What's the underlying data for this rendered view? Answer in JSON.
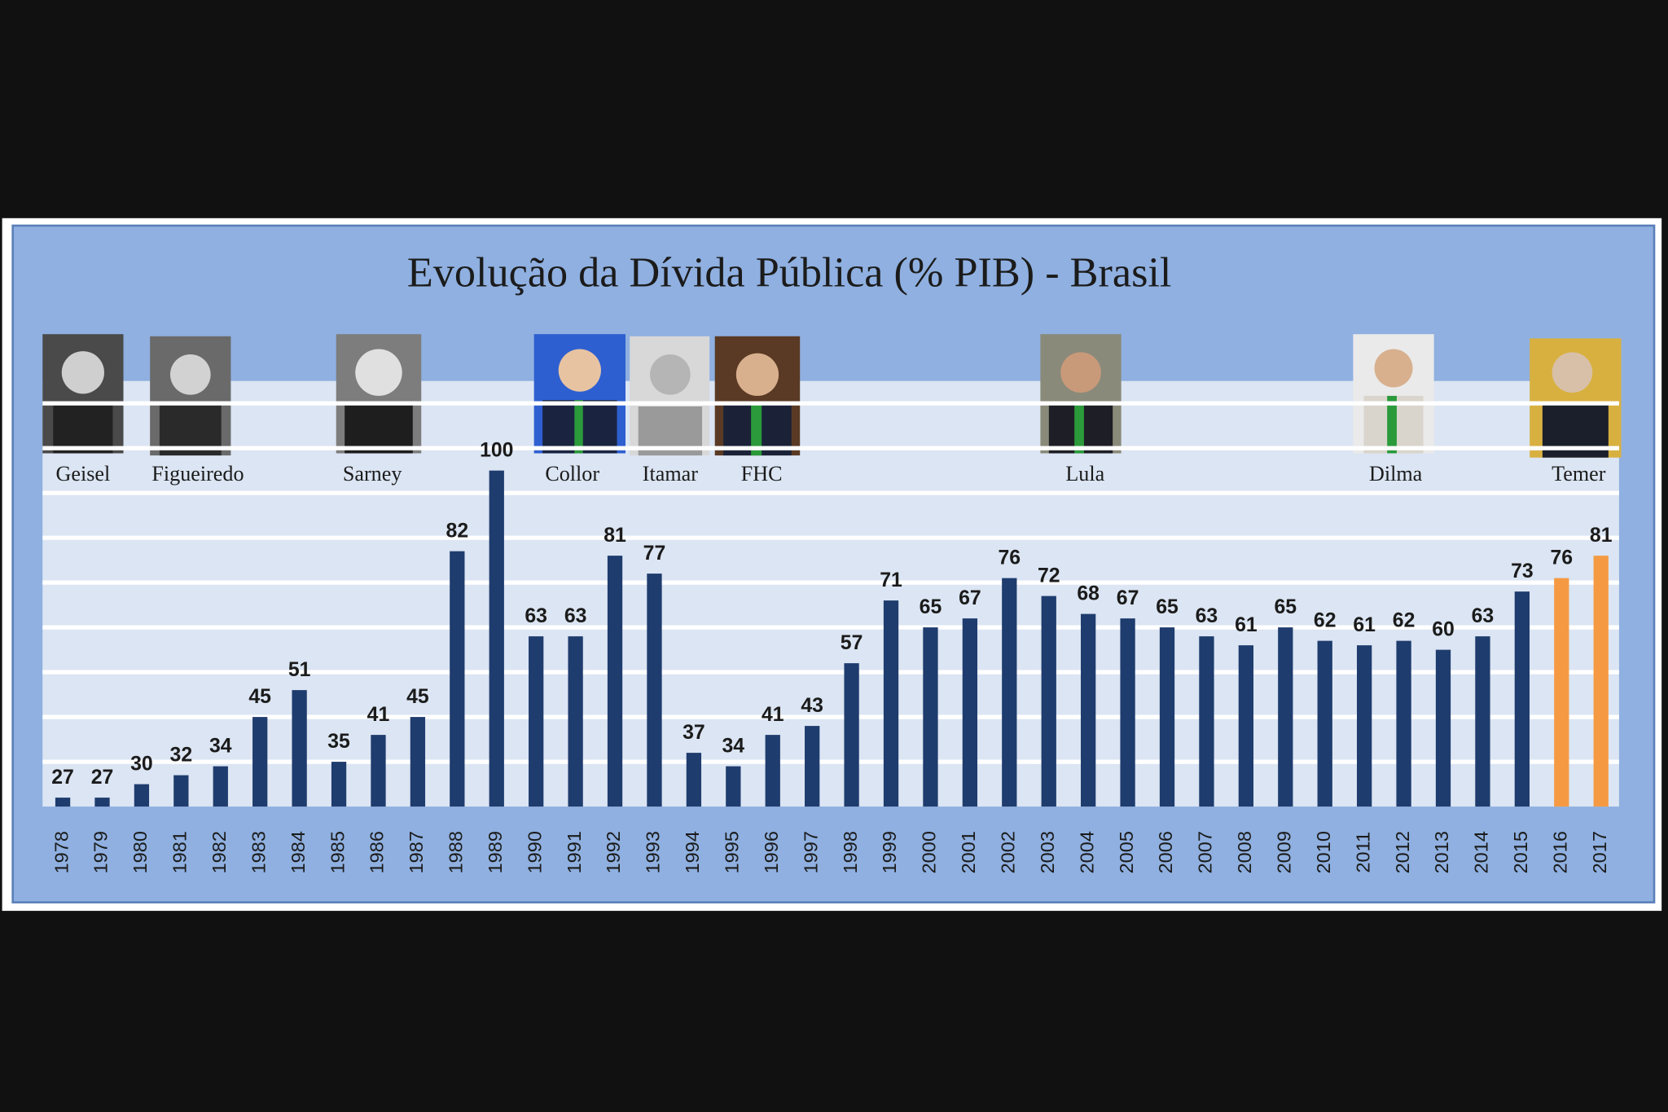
{
  "chart_data": {
    "type": "bar",
    "title": "Evolução da Dívida Pública (% PIB) - Brasil",
    "categories": [
      "1978",
      "1979",
      "1980",
      "1981",
      "1982",
      "1983",
      "1984",
      "1985",
      "1986",
      "1987",
      "1988",
      "1989",
      "1990",
      "1991",
      "1992",
      "1993",
      "1994",
      "1995",
      "1996",
      "1997",
      "1998",
      "1999",
      "2000",
      "2001",
      "2002",
      "2003",
      "2004",
      "2005",
      "2006",
      "2007",
      "2008",
      "2009",
      "2010",
      "2011",
      "2012",
      "2013",
      "2014",
      "2015",
      "2016",
      "2017"
    ],
    "values": [
      27,
      27,
      30,
      32,
      34,
      45,
      51,
      35,
      41,
      45,
      82,
      100,
      63,
      63,
      81,
      77,
      37,
      34,
      41,
      43,
      57,
      71,
      65,
      67,
      76,
      72,
      68,
      67,
      65,
      63,
      61,
      65,
      62,
      61,
      62,
      60,
      63,
      73,
      76,
      81
    ],
    "colors": [
      "#1f3c6e",
      "#1f3c6e",
      "#1f3c6e",
      "#1f3c6e",
      "#1f3c6e",
      "#1f3c6e",
      "#1f3c6e",
      "#1f3c6e",
      "#1f3c6e",
      "#1f3c6e",
      "#1f3c6e",
      "#1f3c6e",
      "#1f3c6e",
      "#1f3c6e",
      "#1f3c6e",
      "#1f3c6e",
      "#1f3c6e",
      "#1f3c6e",
      "#1f3c6e",
      "#1f3c6e",
      "#1f3c6e",
      "#1f3c6e",
      "#1f3c6e",
      "#1f3c6e",
      "#1f3c6e",
      "#1f3c6e",
      "#1f3c6e",
      "#1f3c6e",
      "#1f3c6e",
      "#1f3c6e",
      "#1f3c6e",
      "#1f3c6e",
      "#1f3c6e",
      "#1f3c6e",
      "#1f3c6e",
      "#1f3c6e",
      "#1f3c6e",
      "#1f3c6e",
      "#f59a43",
      "#f59a43"
    ],
    "ylim": [
      25,
      120
    ],
    "yticks": [
      35,
      45,
      55,
      65,
      75,
      85,
      95,
      105,
      115
    ],
    "tick_labels": false,
    "grid": true,
    "annotations": [
      "Geisel",
      "Figueiredo",
      "Sarney",
      "Collor",
      "Itamar",
      "FHC",
      "Lula",
      "Dilma",
      "Temer"
    ]
  }
}
